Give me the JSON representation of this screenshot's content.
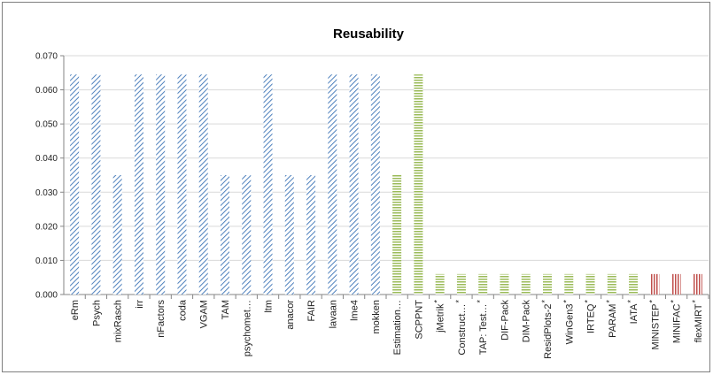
{
  "chart_data": {
    "type": "bar",
    "title": "Reusability",
    "xlabel": "",
    "ylabel": "",
    "ylim": [
      0,
      0.07
    ],
    "y_ticks": [
      "0.000",
      "0.010",
      "0.020",
      "0.030",
      "0.040",
      "0.050",
      "0.060",
      "0.070"
    ],
    "grid": true,
    "legend": "none",
    "categories": [
      {
        "label": "eRm",
        "value": 0.0645,
        "group": "blue",
        "star": false
      },
      {
        "label": "Psych",
        "value": 0.0645,
        "group": "blue",
        "star": false
      },
      {
        "label": "mixRasch",
        "value": 0.035,
        "group": "blue",
        "star": false
      },
      {
        "label": "irr",
        "value": 0.0645,
        "group": "blue",
        "star": false
      },
      {
        "label": "nFactors",
        "value": 0.0645,
        "group": "blue",
        "star": false
      },
      {
        "label": "coda",
        "value": 0.0645,
        "group": "blue",
        "star": false
      },
      {
        "label": "VGAM",
        "value": 0.0645,
        "group": "blue",
        "star": false
      },
      {
        "label": "TAM",
        "value": 0.035,
        "group": "blue",
        "star": false
      },
      {
        "label": "psychomet…",
        "value": 0.035,
        "group": "blue",
        "star": false
      },
      {
        "label": "ltm",
        "value": 0.0645,
        "group": "blue",
        "star": false
      },
      {
        "label": "anacor",
        "value": 0.035,
        "group": "blue",
        "star": false
      },
      {
        "label": "FAIR",
        "value": 0.035,
        "group": "blue",
        "star": false
      },
      {
        "label": "lavaan",
        "value": 0.0645,
        "group": "blue",
        "star": false
      },
      {
        "label": "lme4",
        "value": 0.0645,
        "group": "blue",
        "star": false
      },
      {
        "label": "mokken",
        "value": 0.0645,
        "group": "blue",
        "star": false
      },
      {
        "label": "Estimation…",
        "value": 0.035,
        "group": "green",
        "star": false
      },
      {
        "label": "SCPPNT",
        "value": 0.0645,
        "group": "green",
        "star": false
      },
      {
        "label": "jMetrik",
        "value": 0.006,
        "group": "green",
        "star": true
      },
      {
        "label": "Construct…",
        "value": 0.006,
        "group": "green",
        "star": true
      },
      {
        "label": "TAP: Test…",
        "value": 0.006,
        "group": "green",
        "star": true
      },
      {
        "label": "DIF-Pack",
        "value": 0.006,
        "group": "green",
        "star": false
      },
      {
        "label": "DIM-Pack",
        "value": 0.006,
        "group": "green",
        "star": false
      },
      {
        "label": "ResidPlots-2",
        "value": 0.006,
        "group": "green",
        "star": true
      },
      {
        "label": "WinGen3",
        "value": 0.006,
        "group": "green",
        "star": true
      },
      {
        "label": "IRTEQ",
        "value": 0.006,
        "group": "green",
        "star": true
      },
      {
        "label": "PARAM",
        "value": 0.006,
        "group": "green",
        "star": true
      },
      {
        "label": "IATA",
        "value": 0.006,
        "group": "green",
        "star": true
      },
      {
        "label": "MINISTEP",
        "value": 0.006,
        "group": "red",
        "star": true
      },
      {
        "label": "MINIFAC",
        "value": 0.006,
        "group": "red",
        "star": true
      },
      {
        "label": "flexMIRT",
        "value": 0.006,
        "group": "red",
        "star": true
      }
    ],
    "star_glyph": "*",
    "colors": {
      "blue": "#4f81bd",
      "green": "#9bbb59",
      "red": "#c0504d",
      "grid": "#d9d9d9",
      "axis": "#868686"
    }
  }
}
